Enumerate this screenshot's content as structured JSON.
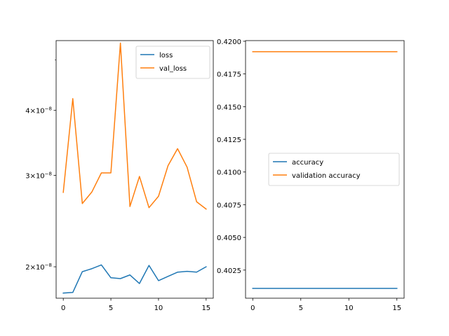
{
  "chart_data": [
    {
      "type": "line",
      "title": "",
      "xlabel": "",
      "ylabel": "",
      "yscale": "log",
      "xlim": [
        -0.75,
        15.75
      ],
      "ylim": [
        1.74e-08,
        5.45e-08
      ],
      "x_ticks": [
        0,
        5,
        10,
        15
      ],
      "y_ticks": [
        {
          "value": 2e-08,
          "label_base": "2×10",
          "label_exp": "−8"
        },
        {
          "value": 3e-08,
          "label_base": "3×10",
          "label_exp": "−8"
        },
        {
          "value": 4e-08,
          "label_base": "4×10",
          "label_exp": "−8"
        }
      ],
      "y_minor_ticks": [
        5e-08
      ],
      "legend": "upper right",
      "grid": false,
      "x": [
        0,
        1,
        2,
        3,
        4,
        5,
        6,
        7,
        8,
        9,
        10,
        11,
        12,
        13,
        14,
        15
      ],
      "series": [
        {
          "name": "loss",
          "color": "#1f77b4",
          "values": [
            1.78e-08,
            1.785e-08,
            1.957e-08,
            1.983e-08,
            2.017e-08,
            1.905e-08,
            1.898e-08,
            1.929e-08,
            1.857e-08,
            2.012e-08,
            1.881e-08,
            1.917e-08,
            1.953e-08,
            1.96e-08,
            1.953e-08,
            2e-08
          ]
        },
        {
          "name": "val_loss",
          "color": "#ff7f0e",
          "values": [
            2.781e-08,
            4.215e-08,
            2.647e-08,
            2.786e-08,
            3.032e-08,
            3.032e-08,
            5.391e-08,
            2.612e-08,
            2.985e-08,
            2.599e-08,
            2.734e-08,
            3.131e-08,
            3.376e-08,
            3.11e-08,
            2.668e-08,
            2.583e-08
          ]
        }
      ]
    },
    {
      "type": "line",
      "title": "",
      "xlabel": "",
      "ylabel": "",
      "xlim": [
        -0.75,
        15.75
      ],
      "ylim": [
        0.40035,
        0.42005
      ],
      "x_ticks": [
        0,
        5,
        10,
        15
      ],
      "y_ticks": [
        0.4025,
        0.405,
        0.4075,
        0.41,
        0.4125,
        0.415,
        0.4175,
        0.42
      ],
      "y_tick_labels": [
        "0.4025",
        "0.4050",
        "0.4075",
        "0.4100",
        "0.4125",
        "0.4150",
        "0.4175",
        "0.4200"
      ],
      "legend": "center right",
      "grid": false,
      "x": [
        0,
        1,
        2,
        3,
        4,
        5,
        6,
        7,
        8,
        9,
        10,
        11,
        12,
        13,
        14,
        15
      ],
      "series": [
        {
          "name": "accuracy",
          "color": "#1f77b4",
          "values": [
            0.4011,
            0.4011,
            0.4011,
            0.4011,
            0.4011,
            0.4011,
            0.4011,
            0.4011,
            0.4011,
            0.4011,
            0.4011,
            0.4011,
            0.4011,
            0.4011,
            0.4011,
            0.4011
          ]
        },
        {
          "name": "validation accuracy",
          "color": "#ff7f0e",
          "values": [
            0.4192,
            0.4192,
            0.4192,
            0.4192,
            0.4192,
            0.4192,
            0.4192,
            0.4192,
            0.4192,
            0.4192,
            0.4192,
            0.4192,
            0.4192,
            0.4192,
            0.4192,
            0.4192
          ]
        }
      ]
    }
  ]
}
